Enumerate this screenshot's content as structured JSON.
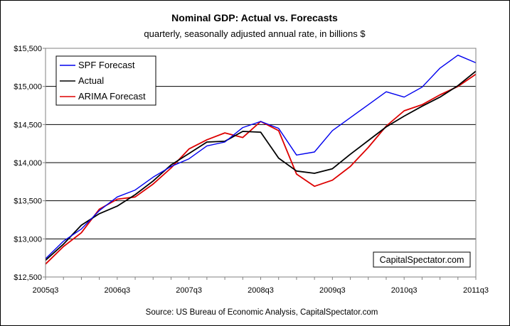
{
  "chart_data": {
    "type": "line",
    "title": "Nominal GDP: Actual vs. Forecasts",
    "subtitle": "quarterly, seasonally adjusted annual rate, in billions $",
    "source": "Source: US Bureau of Economic Analysis, CapitalSpectator.com",
    "watermark": "CapitalSpectator.com",
    "xlabel": "",
    "ylabel": "",
    "ylim": [
      12500,
      15500
    ],
    "y_ticks": [
      12500,
      13000,
      13500,
      14000,
      14500,
      15000,
      15500
    ],
    "y_tick_labels": [
      "$12,500",
      "$13,000",
      "$13,500",
      "$14,000",
      "$14,500",
      "$15,000",
      "$15,500"
    ],
    "x_tick_labels": [
      "2005q3",
      "2006q3",
      "2007q3",
      "2008q3",
      "2009q3",
      "2010q3",
      "2011q3"
    ],
    "grid": "horizontal",
    "legend_position": "top-left",
    "x": [
      "2005q3",
      "2005q4",
      "2006q1",
      "2006q2",
      "2006q3",
      "2006q4",
      "2007q1",
      "2007q2",
      "2007q3",
      "2007q4",
      "2008q1",
      "2008q2",
      "2008q3",
      "2008q4",
      "2009q1",
      "2009q2",
      "2009q3",
      "2009q4",
      "2010q1",
      "2010q2",
      "2010q3",
      "2010q4",
      "2011q1",
      "2011q2",
      "2011q3"
    ],
    "series": [
      {
        "name": "SPF Forecast",
        "color": "#0000ee",
        "values": [
          12740,
          12970,
          13130,
          13370,
          13550,
          13640,
          13810,
          13950,
          14050,
          14220,
          14270,
          14460,
          14540,
          14450,
          14100,
          14140,
          14420,
          14590,
          14760,
          14930,
          14860,
          14990,
          15240,
          15410,
          15310
        ]
      },
      {
        "name": "Actual",
        "color": "#000000",
        "values": [
          12720,
          12930,
          13180,
          13330,
          13430,
          13580,
          13760,
          13970,
          14120,
          14270,
          14280,
          14410,
          14400,
          14060,
          13890,
          13860,
          13920,
          14110,
          14290,
          14470,
          14610,
          14740,
          14860,
          15010,
          15200
        ]
      },
      {
        "name": "ARIMA Forecast",
        "color": "#dd0000",
        "values": [
          12670,
          12900,
          13080,
          13390,
          13520,
          13550,
          13720,
          13930,
          14180,
          14300,
          14390,
          14330,
          14540,
          14420,
          13850,
          13690,
          13770,
          13950,
          14200,
          14480,
          14680,
          14760,
          14890,
          15000,
          15160
        ]
      }
    ]
  }
}
